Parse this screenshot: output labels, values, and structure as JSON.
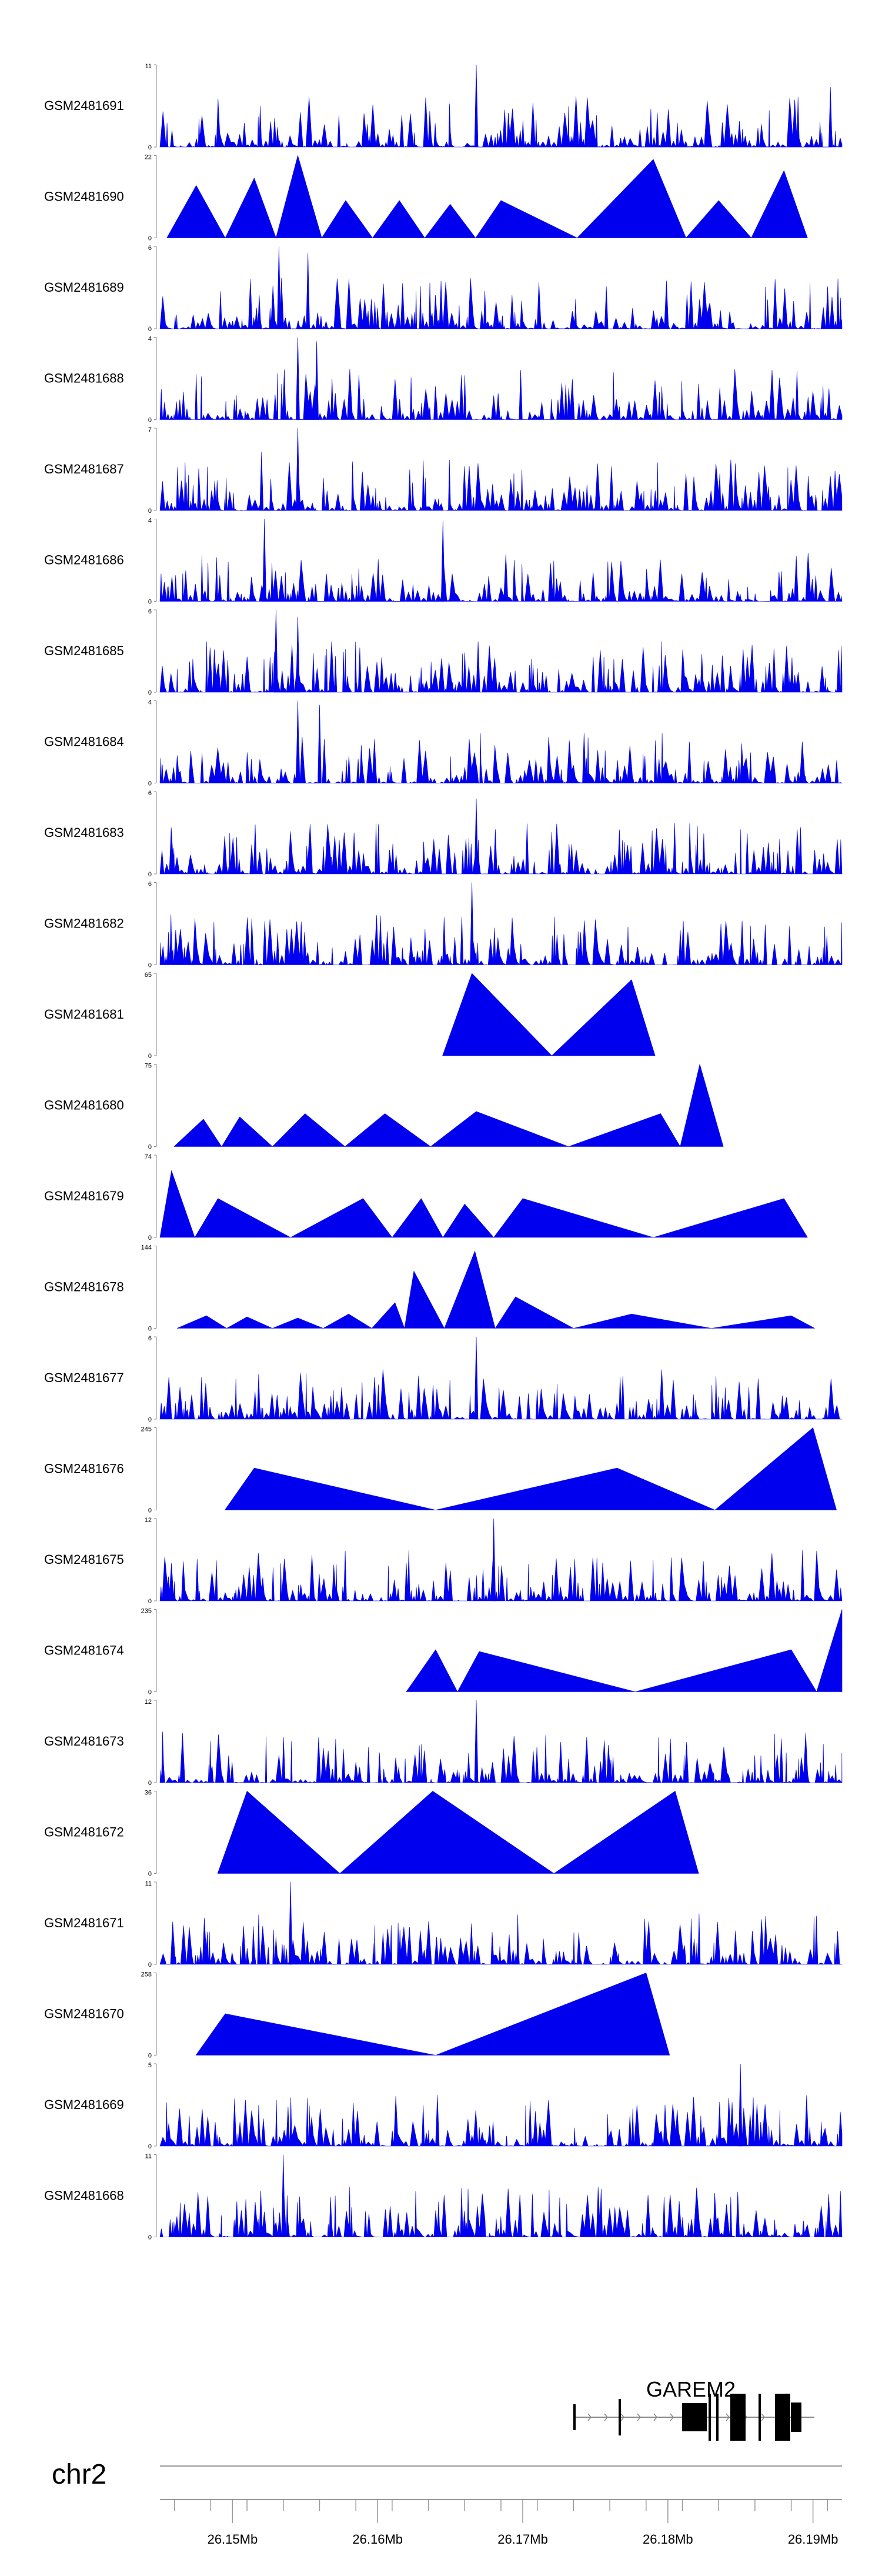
{
  "chart_data": {
    "type": "area",
    "title": "",
    "locus": "chr2",
    "region_mb": [
      26.145,
      26.192
    ],
    "x_ticks": [
      "26.15Mb",
      "26.16Mb",
      "26.17Mb",
      "26.18Mb",
      "26.19Mb"
    ],
    "gene": {
      "name": "GAREM2"
    },
    "tracks": [
      {
        "name": "GSM2481691",
        "ymax": "11",
        "ymin": "0",
        "pattern": "dense",
        "seed": 11,
        "peaks": [
          [
            26.1668,
            11
          ],
          [
            26.1912,
            8
          ]
        ]
      },
      {
        "name": "GSM2481690",
        "ymax": "22",
        "ymin": "0",
        "pattern": "tent",
        "seed": 12,
        "peaks": [
          [
            26.1475,
            14
          ],
          [
            26.1515,
            16
          ],
          [
            26.1545,
            22
          ],
          [
            26.1578,
            10
          ],
          [
            26.1615,
            10
          ],
          [
            26.165,
            9
          ],
          [
            26.1685,
            10
          ],
          [
            26.179,
            21
          ],
          [
            26.1835,
            10
          ],
          [
            26.188,
            18
          ]
        ]
      },
      {
        "name": "GSM2481689",
        "ymax": "6",
        "ymin": "0",
        "pattern": "dense",
        "seed": 13,
        "peaks": [
          [
            26.1532,
            6
          ],
          [
            26.1552,
            5.5
          ]
        ]
      },
      {
        "name": "GSM2481688",
        "ymax": "4",
        "ymin": "0",
        "pattern": "dense",
        "seed": 14,
        "peaks": [
          [
            26.1545,
            4
          ],
          [
            26.1558,
            3.8
          ]
        ]
      },
      {
        "name": "GSM2481687",
        "ymax": "7",
        "ymin": "0",
        "pattern": "dense",
        "seed": 15,
        "peaks": [
          [
            26.1545,
            7
          ],
          [
            26.152,
            5
          ]
        ]
      },
      {
        "name": "GSM2481686",
        "ymax": "4",
        "ymin": "0",
        "pattern": "dense",
        "seed": 16,
        "peaks": [
          [
            26.1522,
            4
          ],
          [
            26.1645,
            3.9
          ]
        ]
      },
      {
        "name": "GSM2481685",
        "ymax": "6",
        "ymin": "0",
        "pattern": "dense",
        "seed": 17,
        "peaks": [
          [
            26.153,
            6
          ],
          [
            26.1545,
            5.5
          ]
        ]
      },
      {
        "name": "GSM2481684",
        "ymax": "4",
        "ymin": "0",
        "pattern": "dense",
        "seed": 18,
        "peaks": [
          [
            26.1545,
            4
          ],
          [
            26.156,
            3.8
          ]
        ]
      },
      {
        "name": "GSM2481683",
        "ymax": "6",
        "ymin": "0",
        "pattern": "dense",
        "seed": 19,
        "peaks": [
          [
            26.1668,
            5.5
          ]
        ]
      },
      {
        "name": "GSM2481682",
        "ymax": "6",
        "ymin": "0",
        "pattern": "dense",
        "seed": 20,
        "peaks": [
          [
            26.1665,
            6
          ]
        ]
      },
      {
        "name": "GSM2481681",
        "ymax": "65",
        "ymin": "0",
        "pattern": "tent",
        "seed": 21,
        "peaks": [
          [
            26.1665,
            65
          ],
          [
            26.1775,
            60
          ]
        ]
      },
      {
        "name": "GSM2481680",
        "ymax": "75",
        "ymin": "0",
        "pattern": "tent",
        "seed": 22,
        "peaks": [
          [
            26.148,
            25
          ],
          [
            26.1505,
            27
          ],
          [
            26.155,
            30
          ],
          [
            26.1605,
            30
          ],
          [
            26.1668,
            32
          ],
          [
            26.1795,
            30
          ],
          [
            26.1822,
            75
          ]
        ]
      },
      {
        "name": "GSM2481679",
        "ymax": "74",
        "ymin": "0",
        "pattern": "tent",
        "seed": 23,
        "peaks": [
          [
            26.1458,
            60
          ],
          [
            26.149,
            35
          ],
          [
            26.159,
            35
          ],
          [
            26.163,
            35
          ],
          [
            26.166,
            30
          ],
          [
            26.17,
            35
          ],
          [
            26.188,
            35
          ]
        ]
      },
      {
        "name": "GSM2481678",
        "ymax": "144",
        "ymin": "0",
        "pattern": "tent",
        "seed": 24,
        "peaks": [
          [
            26.1482,
            22
          ],
          [
            26.151,
            20
          ],
          [
            26.1545,
            18
          ],
          [
            26.158,
            25
          ],
          [
            26.1612,
            45
          ],
          [
            26.1625,
            100
          ],
          [
            26.1667,
            135
          ],
          [
            26.1695,
            55
          ],
          [
            26.1775,
            25
          ],
          [
            26.1885,
            22
          ]
        ]
      },
      {
        "name": "GSM2481677",
        "ymax": "6",
        "ymin": "0",
        "pattern": "dense",
        "seed": 25,
        "peaks": [
          [
            26.1668,
            6
          ]
        ]
      },
      {
        "name": "GSM2481676",
        "ymax": "245",
        "ymin": "0",
        "pattern": "tent",
        "seed": 26,
        "peaks": [
          [
            26.1515,
            125
          ],
          [
            26.1765,
            125
          ],
          [
            26.19,
            245
          ]
        ]
      },
      {
        "name": "GSM2481675",
        "ymax": "12",
        "ymin": "0",
        "pattern": "dense",
        "seed": 27,
        "peaks": [
          [
            26.168,
            12
          ]
        ]
      },
      {
        "name": "GSM2481674",
        "ymax": "235",
        "ymin": "0",
        "pattern": "tent",
        "seed": 28,
        "peaks": [
          [
            26.164,
            120
          ],
          [
            26.167,
            115
          ],
          [
            26.1885,
            120
          ],
          [
            26.192,
            235
          ]
        ]
      },
      {
        "name": "GSM2481673",
        "ymax": "12",
        "ymin": "0",
        "pattern": "dense",
        "seed": 29,
        "peaks": [
          [
            26.1668,
            12
          ]
        ]
      },
      {
        "name": "GSM2481672",
        "ymax": "36",
        "ymin": "0",
        "pattern": "tent",
        "seed": 30,
        "peaks": [
          [
            26.151,
            36
          ],
          [
            26.1638,
            36
          ],
          [
            26.1805,
            36
          ]
        ]
      },
      {
        "name": "GSM2481671",
        "ymax": "11",
        "ymin": "0",
        "pattern": "dense",
        "seed": 31,
        "peaks": [
          [
            26.154,
            11
          ]
        ]
      },
      {
        "name": "GSM2481670",
        "ymax": "258",
        "ymin": "0",
        "pattern": "tent",
        "seed": 32,
        "peaks": [
          [
            26.1495,
            130
          ],
          [
            26.1785,
            258
          ]
        ]
      },
      {
        "name": "GSM2481669",
        "ymax": "5",
        "ymin": "0",
        "pattern": "dense",
        "seed": 33,
        "peaks": [
          [
            26.185,
            5
          ]
        ]
      },
      {
        "name": "GSM2481668",
        "ymax": "11",
        "ymin": "0",
        "pattern": "dense",
        "seed": 34,
        "peaks": [
          [
            26.1535,
            11
          ]
        ]
      }
    ]
  }
}
